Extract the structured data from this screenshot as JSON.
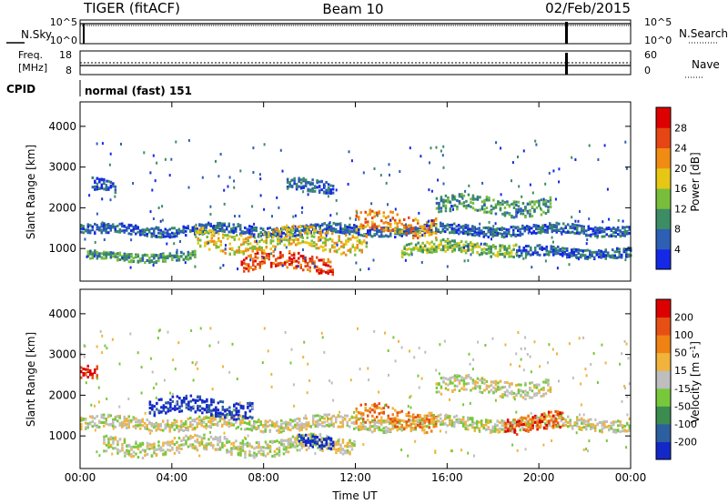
{
  "header": {
    "title": "TIGER (fitACF)",
    "beam": "Beam 10",
    "date": "02/Feb/2015"
  },
  "aux_panels": {
    "nsky_label": "N.Sky",
    "nsearch_label": "N.Search",
    "noise_ticks_left": [
      "10^5",
      "10^0"
    ],
    "noise_ticks_right": [
      "10^5",
      "10^0"
    ],
    "freq_label_1": "Freq.",
    "freq_label_2": "[MHz]",
    "freq_ticks": [
      "18",
      "8"
    ],
    "nave_label": "Nave",
    "nave_ticks": [
      "60",
      "0"
    ],
    "cpid_label": "CPID",
    "cpid_text": "normal (fast) 151"
  },
  "chart_data": [
    {
      "type": "heatmap",
      "name": "power",
      "ylabel": "Slant Range [km]",
      "y_ticks": [
        1000,
        2000,
        3000,
        4000
      ],
      "ylim": [
        200,
        4600
      ],
      "x_ticks": [
        "00:00",
        "04:00",
        "08:00",
        "12:00",
        "16:00",
        "20:00",
        "00:00"
      ],
      "xlim_hours": [
        0,
        24
      ],
      "colorbar": {
        "label": "Power [dB]",
        "ticks": [
          "4",
          "8",
          "12",
          "16",
          "20",
          "24",
          "28"
        ],
        "colors": [
          "#1428e6",
          "#2d5fb4",
          "#3c8c64",
          "#78be3c",
          "#e6c814",
          "#f08c14",
          "#e64614",
          "#dc0000"
        ]
      },
      "bands": [
        {
          "from": 0.0,
          "to": 24.0,
          "center": 1450,
          "width": 120,
          "level": 1
        },
        {
          "from": 0.3,
          "to": 5.0,
          "center": 800,
          "width": 100,
          "level": 2
        },
        {
          "from": 5.0,
          "to": 12.5,
          "center": 1200,
          "width": 250,
          "level": 4
        },
        {
          "from": 7.0,
          "to": 11.0,
          "center": 650,
          "width": 200,
          "level": 6
        },
        {
          "from": 12.0,
          "to": 15.5,
          "center": 1600,
          "width": 250,
          "level": 5
        },
        {
          "from": 15.5,
          "to": 20.5,
          "center": 2050,
          "width": 200,
          "level": 2
        },
        {
          "from": 14.0,
          "to": 19.0,
          "center": 1000,
          "width": 150,
          "level": 3
        },
        {
          "from": 19.0,
          "to": 24.0,
          "center": 900,
          "width": 120,
          "level": 1
        },
        {
          "from": 0.5,
          "to": 1.5,
          "center": 2550,
          "width": 150,
          "level": 1
        },
        {
          "from": 9.0,
          "to": 11.0,
          "center": 2550,
          "width": 150,
          "level": 1
        }
      ]
    },
    {
      "type": "heatmap",
      "name": "velocity",
      "ylabel": "Slant Range [km]",
      "y_ticks": [
        1000,
        2000,
        3000,
        4000
      ],
      "ylim": [
        200,
        4600
      ],
      "x_ticks": [
        "00:00",
        "04:00",
        "08:00",
        "12:00",
        "16:00",
        "20:00",
        "00:00"
      ],
      "xlabel": "Time UT",
      "xlim_hours": [
        0,
        24
      ],
      "colorbar": {
        "label": "Velocity [m s",
        "label_sup": "-1",
        "label_end": "]",
        "ticks": [
          "200",
          "100",
          "50",
          "15",
          "-15",
          "-50",
          "-100",
          "-200"
        ],
        "colors": [
          "#1428c8",
          "#2d5fa0",
          "#3c8c50",
          "#78c83c",
          "#bebebe",
          "#f0b43c",
          "#f08214",
          "#e65014",
          "#dc0000"
        ]
      },
      "bands": [
        {
          "from": 0.0,
          "to": 24.0,
          "center": 1300,
          "width": 150,
          "level": 4
        },
        {
          "from": 1.0,
          "to": 12.0,
          "center": 750,
          "width": 200,
          "level": 4
        },
        {
          "from": 3.0,
          "to": 7.5,
          "center": 1700,
          "width": 200,
          "level": 0
        },
        {
          "from": 9.5,
          "to": 11.0,
          "center": 900,
          "width": 150,
          "level": 0
        },
        {
          "from": 12.0,
          "to": 15.5,
          "center": 1450,
          "width": 250,
          "level": 6
        },
        {
          "from": 15.5,
          "to": 20.5,
          "center": 2200,
          "width": 200,
          "level": 4
        },
        {
          "from": 18.5,
          "to": 21.0,
          "center": 1300,
          "width": 200,
          "level": 7
        },
        {
          "from": 0.0,
          "to": 0.7,
          "center": 2500,
          "width": 150,
          "level": 8
        }
      ]
    }
  ]
}
